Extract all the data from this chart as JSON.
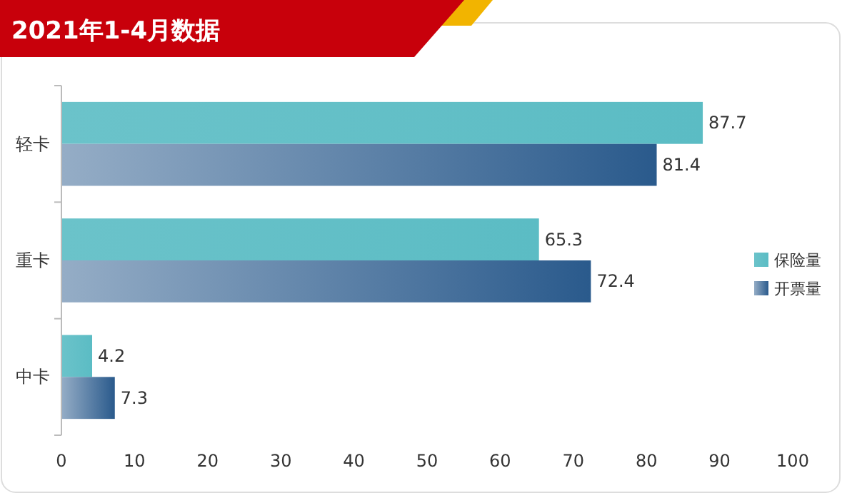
{
  "chart_data": {
    "type": "bar",
    "orientation": "horizontal",
    "title": "2021年1-4月数据",
    "categories": [
      "轻卡",
      "重卡",
      "中卡"
    ],
    "series": [
      {
        "name": "保险量",
        "color": "#5bbcc4",
        "values": [
          87.7,
          65.3,
          4.2
        ]
      },
      {
        "name": "开票量",
        "color": "#2a5a8c",
        "values": [
          81.4,
          72.4,
          7.3
        ]
      }
    ],
    "xlim": [
      0,
      100
    ],
    "xticks": [
      0,
      10,
      20,
      30,
      40,
      50,
      60,
      70,
      80,
      90,
      100
    ],
    "data_labels": true,
    "legend": "right",
    "grid": false
  }
}
